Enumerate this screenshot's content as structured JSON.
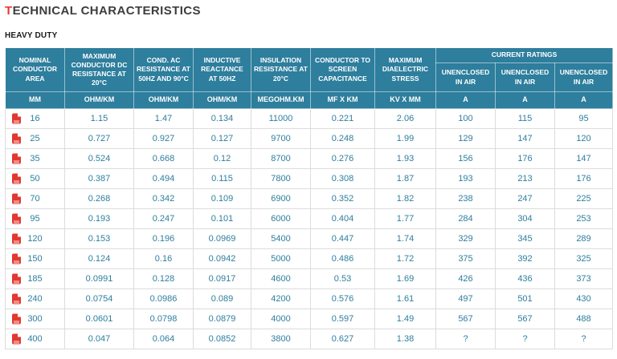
{
  "page": {
    "title_first": "T",
    "title_rest": "ECHNICAL CHARACTERISTICS",
    "subtitle": "HEAVY DUTY"
  },
  "colors": {
    "accent": "#2e7e9d",
    "title_red": "#e53935",
    "pdf_red": "#e2382f",
    "border": "#dcdcdc",
    "text_dark": "#3d3d3d"
  },
  "table": {
    "headers": [
      "NOMINAL CONDUCTOR AREA",
      "MAXIMUM CONDUCTOR DC RESISTANCE AT 20°C",
      "COND. AC RESISTANCE AT 50HZ AND 90°C",
      "INDUCTIVE REACTANCE AT 50HZ",
      "INSULATION RESISTANCE AT 20°C",
      "CONDUCTOR TO SCREEN CAPACITANCE",
      "MAXIMUM DIAELECTRIC STRESS"
    ],
    "current_ratings": "CURRENT RATINGS",
    "current_ratings_sub": [
      "UNENCLOSED IN AIR",
      "UNENCLOSED IN AIR",
      "UNENCLOSED IN AIR"
    ],
    "units": [
      "MM",
      "OHM/KM",
      "OHM/KM",
      "OHM/KM",
      "MEGOHM.KM",
      "MF X KM",
      "KV X MM",
      "A",
      "A",
      "A"
    ],
    "rows": [
      {
        "area": "16",
        "values": [
          "1.15",
          "1.47",
          "0.134",
          "11000",
          "0.221",
          "2.06",
          "100",
          "115",
          "95"
        ]
      },
      {
        "area": "25",
        "values": [
          "0.727",
          "0.927",
          "0.127",
          "9700",
          "0.248",
          "1.99",
          "129",
          "147",
          "120"
        ]
      },
      {
        "area": "35",
        "values": [
          "0.524",
          "0.668",
          "0.12",
          "8700",
          "0.276",
          "1.93",
          "156",
          "176",
          "147"
        ]
      },
      {
        "area": "50",
        "values": [
          "0.387",
          "0.494",
          "0.115",
          "7800",
          "0.308",
          "1.87",
          "193",
          "213",
          "176"
        ]
      },
      {
        "area": "70",
        "values": [
          "0.268",
          "0.342",
          "0.109",
          "6900",
          "0.352",
          "1.82",
          "238",
          "247",
          "225"
        ]
      },
      {
        "area": "95",
        "values": [
          "0.193",
          "0.247",
          "0.101",
          "6000",
          "0.404",
          "1.77",
          "284",
          "304",
          "253"
        ]
      },
      {
        "area": "120",
        "values": [
          "0.153",
          "0.196",
          "0.0969",
          "5400",
          "0.447",
          "1.74",
          "329",
          "345",
          "289"
        ]
      },
      {
        "area": "150",
        "values": [
          "0.124",
          "0.16",
          "0.0942",
          "5000",
          "0.486",
          "1.72",
          "375",
          "392",
          "325"
        ]
      },
      {
        "area": "185",
        "values": [
          "0.0991",
          "0.128",
          "0.0917",
          "4600",
          "0.53",
          "1.69",
          "426",
          "436",
          "373"
        ]
      },
      {
        "area": "240",
        "values": [
          "0.0754",
          "0.0986",
          "0.089",
          "4200",
          "0.576",
          "1.61",
          "497",
          "501",
          "430"
        ]
      },
      {
        "area": "300",
        "values": [
          "0.0601",
          "0.0798",
          "0.0879",
          "4000",
          "0.597",
          "1.49",
          "567",
          "567",
          "488"
        ]
      },
      {
        "area": "400",
        "values": [
          "0.047",
          "0.064",
          "0.0852",
          "3800",
          "0.627",
          "1.38",
          "?",
          "?",
          "?"
        ]
      }
    ]
  }
}
